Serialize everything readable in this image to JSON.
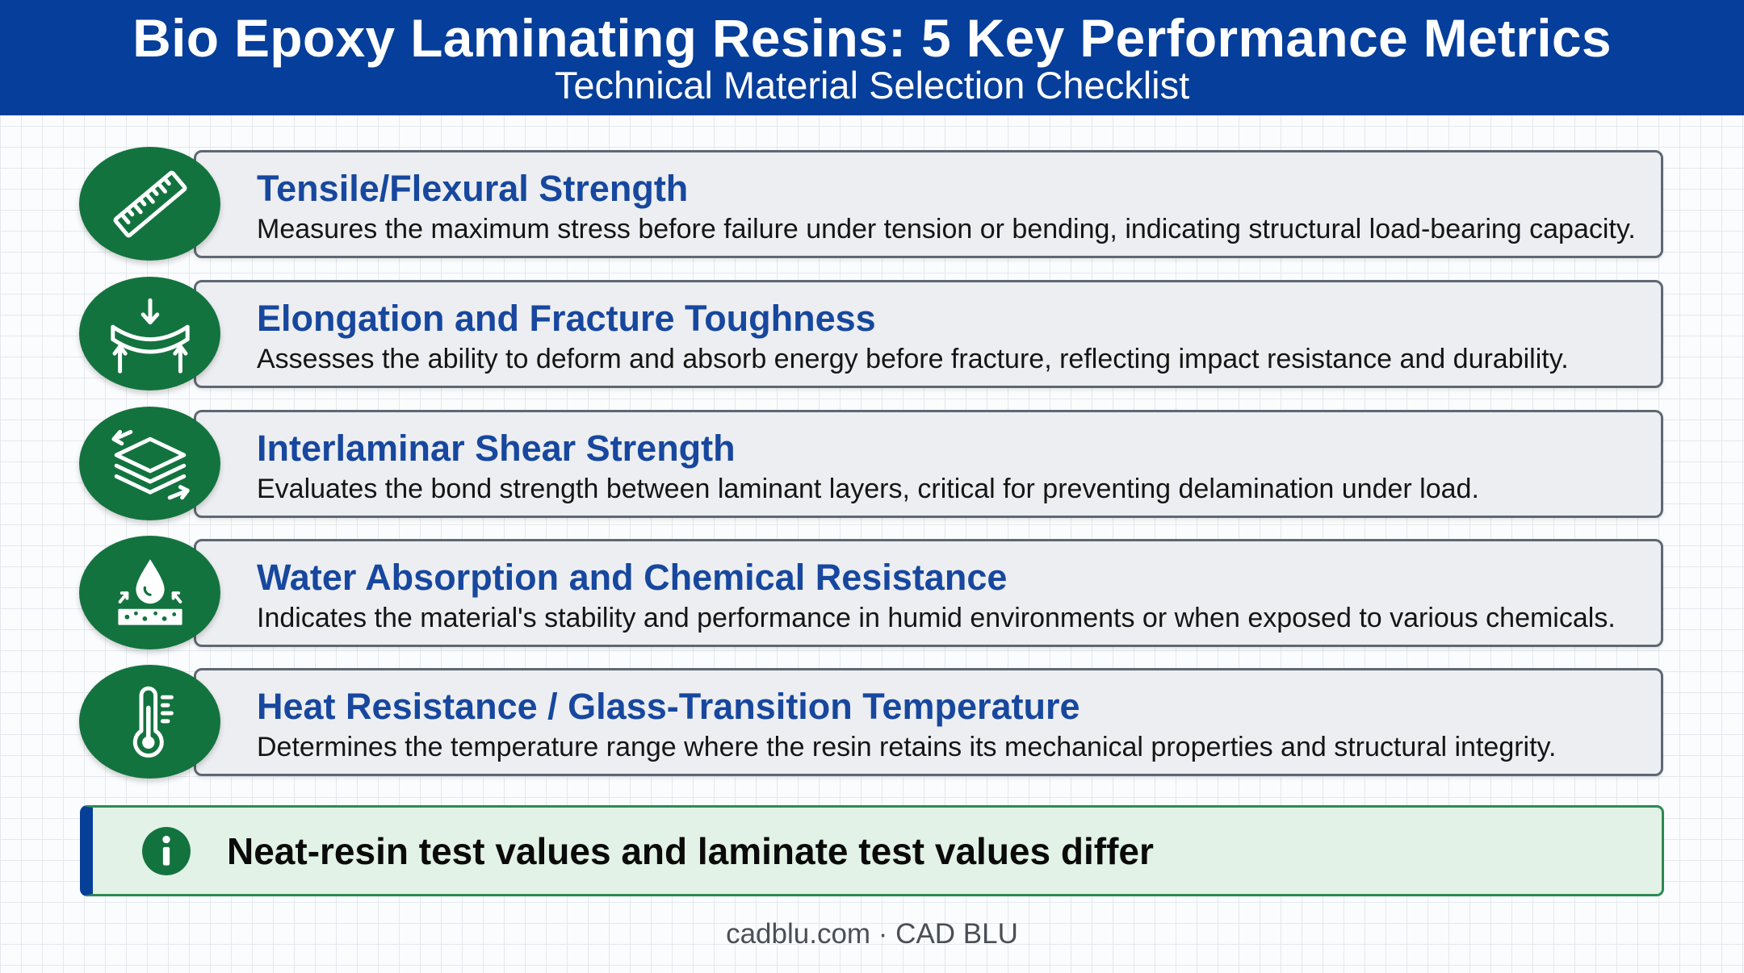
{
  "header": {
    "title": "Bio Epoxy Laminating Resins: 5 Key Performance Metrics",
    "subtitle": "Technical Material Selection Checklist"
  },
  "metrics": [
    {
      "icon": "ruler-icon",
      "title": "Tensile/Flexural Strength",
      "description": "Measures the maximum stress before failure under tension or bending, indicating structural load-bearing capacity."
    },
    {
      "icon": "flexing-beam-icon",
      "title": "Elongation and Fracture Toughness",
      "description": "Assesses the ability to deform and absorb energy before fracture, reflecting impact resistance and durability."
    },
    {
      "icon": "stacked-layers-icon",
      "title": "Interlaminar Shear Strength",
      "description": "Evaluates the bond strength between laminant layers, critical for preventing delamination under load."
    },
    {
      "icon": "water-drop-icon",
      "title": "Water Absorption and Chemical Resistance",
      "description": "Indicates the material's stability and performance in humid environments or when exposed to various chemicals."
    },
    {
      "icon": "thermometer-icon",
      "title": "Heat Resistance / Glass-Transition Temperature",
      "description": "Determines the temperature range where the resin retains its mechanical properties and structural integrity."
    }
  ],
  "note": {
    "icon": "info-icon",
    "text": "Neat-resin test values and laminate test values differ"
  },
  "footer": {
    "text": "cadblu.com · CAD BLU"
  },
  "colors": {
    "header_bg": "#053e9b",
    "icon_green": "#13733f",
    "title_blue": "#17479e",
    "note_bg": "#e3f2e6",
    "note_border": "#2b8a52"
  }
}
